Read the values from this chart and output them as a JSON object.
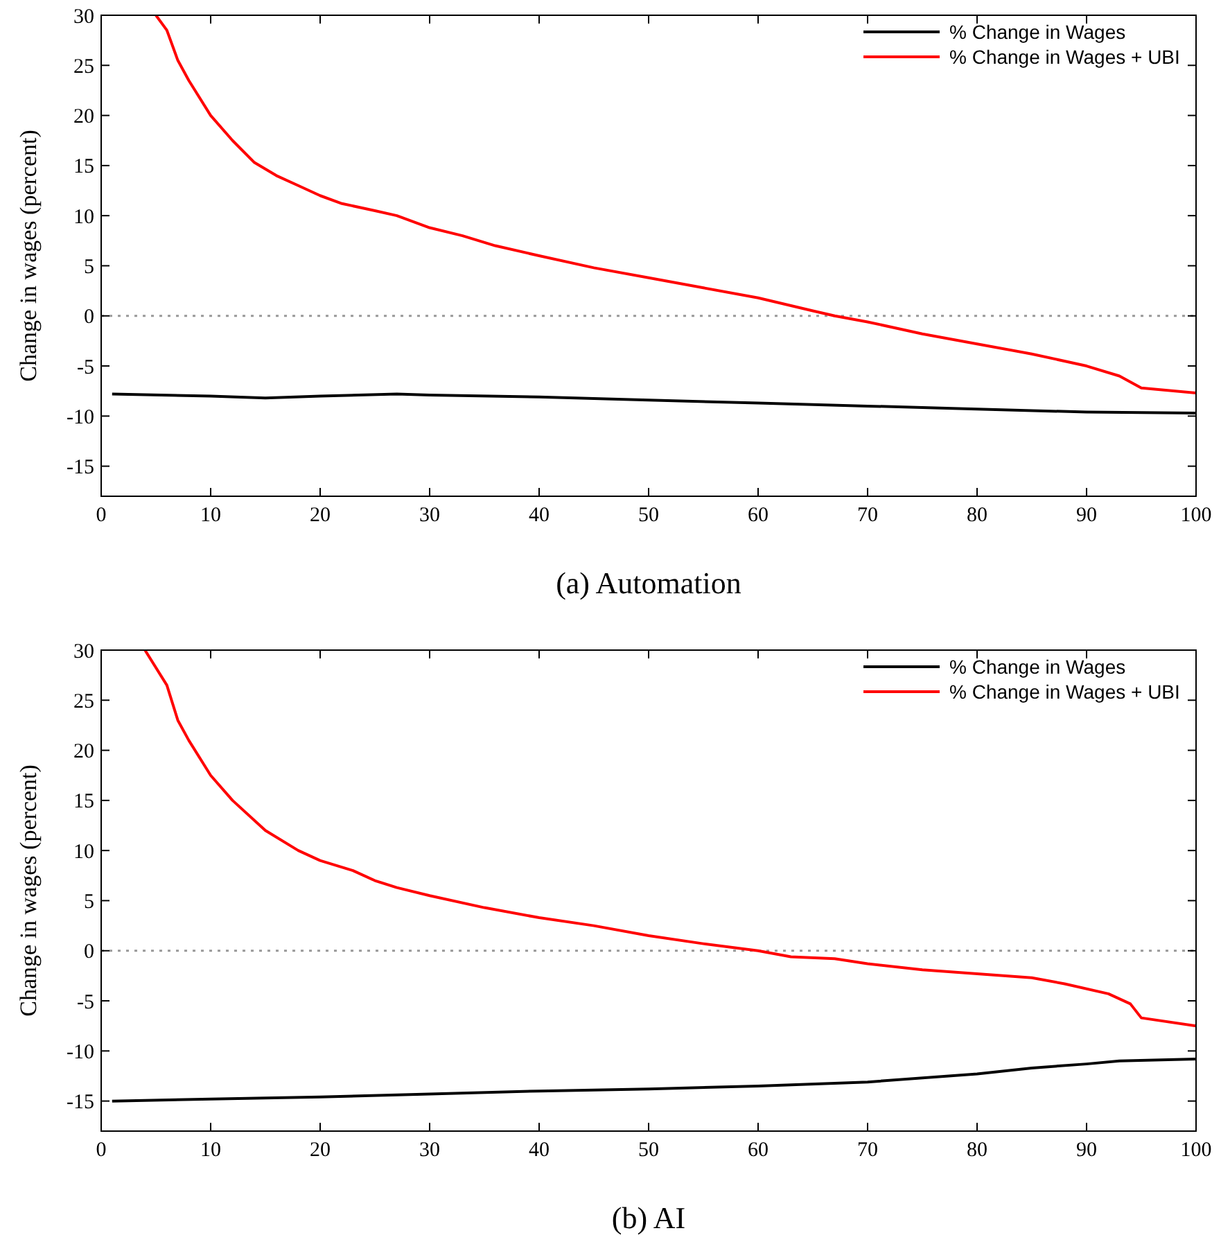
{
  "chart_data": [
    {
      "type": "line",
      "title": "(a) Automation",
      "ylabel": "Change in wages (percent)",
      "xlim": [
        0,
        100
      ],
      "xticks": [
        0,
        10,
        20,
        30,
        40,
        50,
        60,
        70,
        80,
        90,
        100
      ],
      "ylim": [
        -18,
        30
      ],
      "yticks": [
        -15,
        -10,
        -5,
        0,
        5,
        10,
        15,
        20,
        25,
        30
      ],
      "legend": "top right",
      "grid": false,
      "line_style": "solid",
      "ref_lines": [
        {
          "axis": "y",
          "value": 0,
          "color": "#999999",
          "line_style": "dotted"
        }
      ],
      "series": [
        {
          "name": "% Change in Wages",
          "color": "#000000",
          "x": [
            1,
            10,
            15,
            20,
            27,
            30,
            40,
            50,
            60,
            70,
            80,
            90,
            100
          ],
          "values": [
            -7.8,
            -8,
            -8.2,
            -8,
            -7.8,
            -7.9,
            -8.1,
            -8.4,
            -8.7,
            -9,
            -9.3,
            -9.6,
            -9.7
          ]
        },
        {
          "name": "% Change in Wages + UBI",
          "color": "#ff0000",
          "x": [
            5,
            6,
            7,
            8,
            10,
            12,
            14,
            16,
            18,
            20,
            22,
            25,
            27,
            30,
            33,
            36,
            40,
            45,
            50,
            55,
            60,
            65,
            67,
            70,
            75,
            80,
            85,
            90,
            93,
            95,
            100
          ],
          "values": [
            30,
            28.5,
            25.5,
            23.5,
            20,
            17.5,
            15.3,
            14,
            13,
            12,
            11.2,
            10.5,
            10,
            8.8,
            8,
            7,
            6,
            4.8,
            3.8,
            2.8,
            1.8,
            0.5,
            0,
            -0.6,
            -1.8,
            -2.8,
            -3.8,
            -5,
            -6,
            -7.2,
            -7.7
          ]
        }
      ]
    },
    {
      "type": "line",
      "title": "(b) AI",
      "ylabel": "Change in wages (percent)",
      "xlim": [
        0,
        100
      ],
      "xticks": [
        0,
        10,
        20,
        30,
        40,
        50,
        60,
        70,
        80,
        90,
        100
      ],
      "ylim": [
        -18,
        30
      ],
      "yticks": [
        -15,
        -10,
        -5,
        0,
        5,
        10,
        15,
        20,
        25,
        30
      ],
      "legend": "top right",
      "grid": false,
      "line_style": "solid",
      "ref_lines": [
        {
          "axis": "y",
          "value": 0,
          "color": "#999999",
          "line_style": "dotted"
        }
      ],
      "series": [
        {
          "name": "% Change in Wages",
          "color": "#000000",
          "x": [
            1,
            10,
            20,
            30,
            40,
            50,
            60,
            70,
            80,
            85,
            90,
            93,
            100
          ],
          "values": [
            -15,
            -14.8,
            -14.6,
            -14.3,
            -14,
            -13.8,
            -13.5,
            -13.1,
            -12.3,
            -11.7,
            -11.3,
            -11,
            -10.8
          ]
        },
        {
          "name": "% Change in Wages + UBI",
          "color": "#ff0000",
          "x": [
            4,
            6,
            7,
            8,
            10,
            12,
            15,
            18,
            20,
            23,
            25,
            27,
            30,
            35,
            40,
            45,
            50,
            55,
            60,
            63,
            67,
            70,
            75,
            80,
            85,
            88,
            92,
            94,
            95,
            100
          ],
          "values": [
            30,
            26.5,
            23,
            21,
            17.5,
            15,
            12,
            10,
            9,
            8,
            7,
            6.3,
            5.5,
            4.3,
            3.3,
            2.5,
            1.5,
            0.7,
            0,
            -0.6,
            -0.8,
            -1.3,
            -1.9,
            -2.3,
            -2.7,
            -3.3,
            -4.3,
            -5.3,
            -6.7,
            -7.5
          ]
        }
      ]
    }
  ]
}
